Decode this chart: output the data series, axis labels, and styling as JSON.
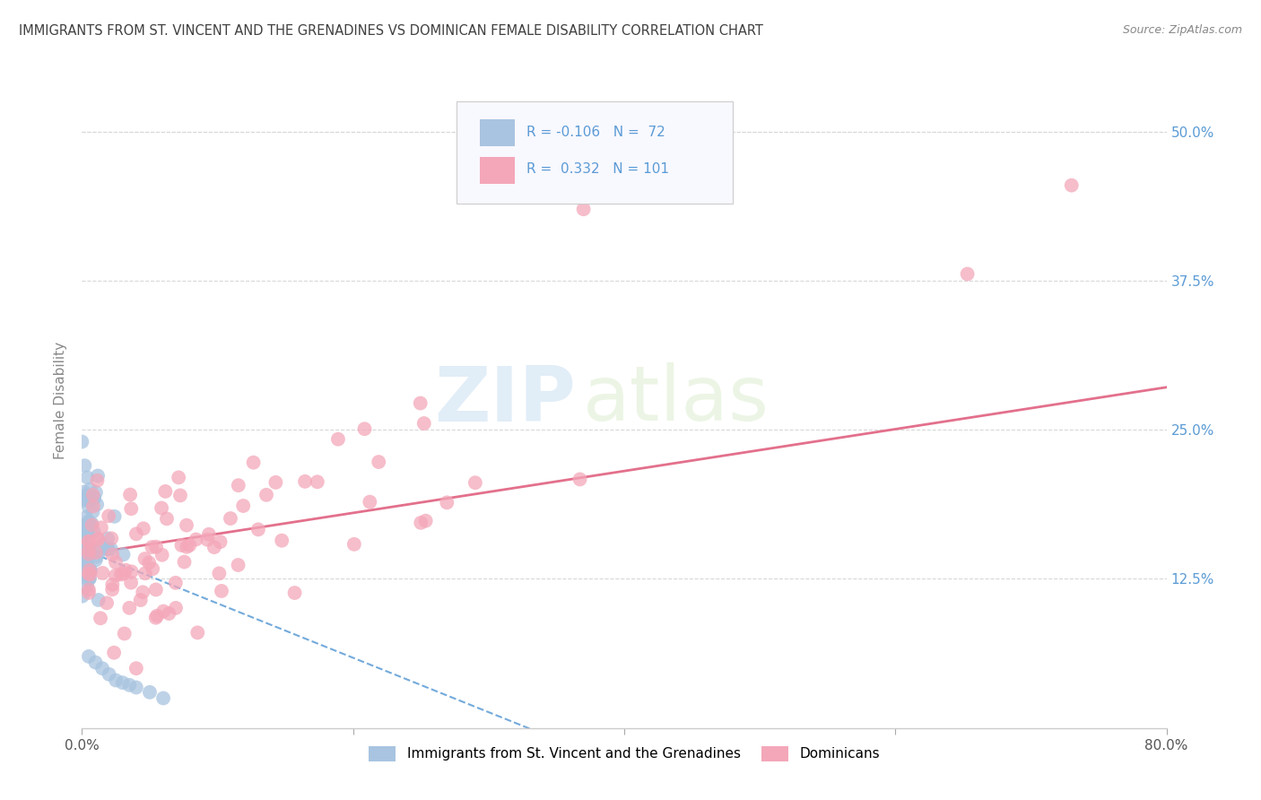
{
  "title": "IMMIGRANTS FROM ST. VINCENT AND THE GRENADINES VS DOMINICAN FEMALE DISABILITY CORRELATION CHART",
  "source": "Source: ZipAtlas.com",
  "ylabel": "Female Disability",
  "xlim": [
    0.0,
    0.8
  ],
  "ylim": [
    0.0,
    0.55
  ],
  "ytick_positions": [
    0.125,
    0.25,
    0.375,
    0.5
  ],
  "ytick_labels": [
    "12.5%",
    "25.0%",
    "37.5%",
    "50.0%"
  ],
  "legend_labels": [
    "Immigrants from St. Vincent and the Grenadines",
    "Dominicans"
  ],
  "blue_color": "#a8c4e0",
  "pink_color": "#f4a7b9",
  "blue_line_color": "#5b9bd5",
  "pink_line_color": "#e06080",
  "blue_R": -0.106,
  "blue_N": 72,
  "pink_R": 0.332,
  "pink_N": 101,
  "watermark_zip": "ZIP",
  "watermark_atlas": "atlas",
  "background_color": "#ffffff",
  "grid_color": "#d8d8d8",
  "title_color": "#404040",
  "right_tick_color": "#5b9bd5"
}
